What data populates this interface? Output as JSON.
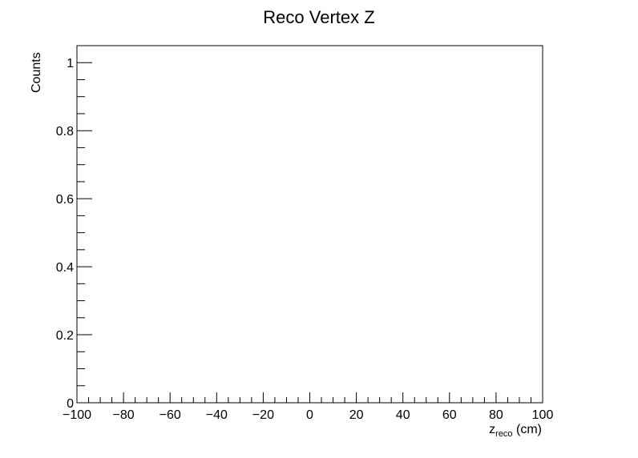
{
  "chart_data": {
    "type": "bar",
    "title": "Reco Vertex Z",
    "xlabel": {
      "symbol": "z",
      "subscript": "reco",
      "unit": " (cm)"
    },
    "ylabel": "Counts",
    "xlim": [
      -100,
      100
    ],
    "ylim": [
      0,
      1.05
    ],
    "x_major_ticks": [
      -100,
      -80,
      -60,
      -40,
      -20,
      0,
      20,
      40,
      60,
      80,
      100
    ],
    "x_tick_labels": [
      "−100",
      "−80",
      "−60",
      "−40",
      "−20",
      "0",
      "20",
      "40",
      "60",
      "80",
      "100"
    ],
    "x_minor_step": 5,
    "y_major_ticks": [
      0,
      0.2,
      0.4,
      0.6,
      0.8,
      1
    ],
    "y_tick_labels": [
      "0",
      "0.2",
      "0.4",
      "0.6",
      "0.8",
      "1"
    ],
    "y_minor_step": 0.05,
    "grid": false,
    "series": []
  }
}
